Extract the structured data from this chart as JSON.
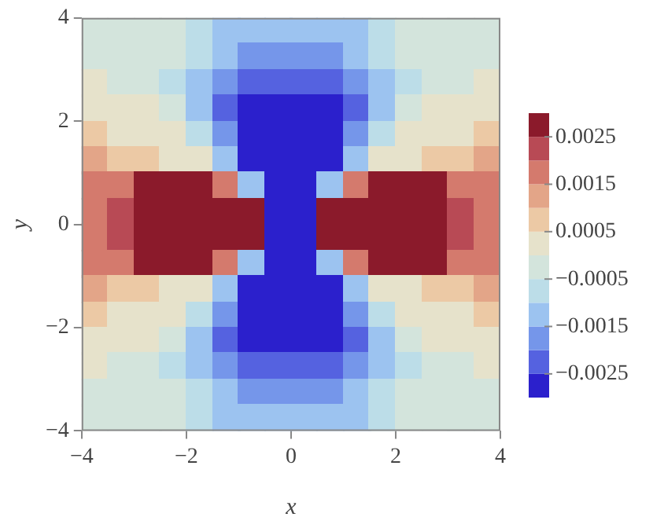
{
  "chart_data": {
    "type": "heatmap",
    "xlabel": "x",
    "ylabel": "y",
    "xlim": [
      -4,
      4
    ],
    "ylim": [
      -4,
      4
    ],
    "xticks": [
      -4,
      -2,
      0,
      2,
      4
    ],
    "yticks": [
      -4,
      -2,
      0,
      2,
      4
    ],
    "clim": [
      -0.003,
      0.003
    ],
    "cticks": [
      -0.0025,
      -0.0015,
      -0.0005,
      0.0005,
      0.0015,
      0.0025
    ],
    "colors": [
      "#2b20cc",
      "#5562e0",
      "#7596ea",
      "#9cc3f0",
      "#bcdde8",
      "#d3e4dc",
      "#e6e2cb",
      "#ecc9a5",
      "#e3a588",
      "#d47a6d",
      "#b84a55",
      "#8b1a2b"
    ],
    "cells": [
      [
        -0.00025,
        -0.00025,
        -0.00025,
        -0.00025,
        -0.00075,
        -0.00125,
        -0.00125,
        -0.00125,
        -0.00125,
        -0.00125,
        -0.00125,
        -0.00075,
        -0.00025,
        -0.00025,
        -0.00025,
        -0.00025
      ],
      [
        -0.00025,
        -0.00025,
        -0.00025,
        -0.00025,
        -0.00075,
        -0.00125,
        -0.00175,
        -0.00175,
        -0.00175,
        -0.00175,
        -0.00125,
        -0.00075,
        -0.00025,
        -0.00025,
        -0.00025,
        -0.00025
      ],
      [
        0.00025,
        -0.00025,
        -0.00025,
        -0.00075,
        -0.00125,
        -0.00175,
        -0.00225,
        -0.00225,
        -0.00225,
        -0.00225,
        -0.00175,
        -0.00125,
        -0.00075,
        -0.00025,
        -0.00025,
        0.00025
      ],
      [
        0.00025,
        0.00025,
        0.00025,
        -0.00025,
        -0.00125,
        -0.00225,
        -0.00275,
        -0.00275,
        -0.00275,
        -0.00275,
        -0.00225,
        -0.00125,
        -0.00025,
        0.00025,
        0.00025,
        0.00025
      ],
      [
        0.00075,
        0.00025,
        0.00025,
        0.00025,
        -0.00075,
        -0.00175,
        -0.00275,
        -0.00275,
        -0.00275,
        -0.00275,
        -0.00175,
        -0.00075,
        0.00025,
        0.00025,
        0.00025,
        0.00075
      ],
      [
        0.00125,
        0.00075,
        0.00075,
        0.00025,
        0.00025,
        -0.00125,
        -0.00275,
        -0.00275,
        -0.00275,
        -0.00275,
        -0.00125,
        0.00025,
        0.00025,
        0.00075,
        0.00075,
        0.00125
      ],
      [
        0.00175,
        0.00175,
        0.00275,
        0.00275,
        0.00275,
        0.00175,
        -0.00125,
        -0.00275,
        -0.00275,
        -0.00125,
        0.00175,
        0.00275,
        0.00275,
        0.00275,
        0.00175,
        0.00175
      ],
      [
        0.00175,
        0.00225,
        0.00275,
        0.00275,
        0.00275,
        0.00275,
        0.00275,
        -0.00275,
        -0.00275,
        0.00275,
        0.00275,
        0.00275,
        0.00275,
        0.00275,
        0.00225,
        0.00175
      ],
      [
        0.00175,
        0.00225,
        0.00275,
        0.00275,
        0.00275,
        0.00275,
        0.00275,
        -0.00275,
        -0.00275,
        0.00275,
        0.00275,
        0.00275,
        0.00275,
        0.00275,
        0.00225,
        0.00175
      ],
      [
        0.00175,
        0.00175,
        0.00275,
        0.00275,
        0.00275,
        0.00175,
        -0.00125,
        -0.00275,
        -0.00275,
        -0.00125,
        0.00175,
        0.00275,
        0.00275,
        0.00275,
        0.00175,
        0.00175
      ],
      [
        0.00125,
        0.00075,
        0.00075,
        0.00025,
        0.00025,
        -0.00125,
        -0.00275,
        -0.00275,
        -0.00275,
        -0.00275,
        -0.00125,
        0.00025,
        0.00025,
        0.00075,
        0.00075,
        0.00125
      ],
      [
        0.00075,
        0.00025,
        0.00025,
        0.00025,
        -0.00075,
        -0.00175,
        -0.00275,
        -0.00275,
        -0.00275,
        -0.00275,
        -0.00175,
        -0.00075,
        0.00025,
        0.00025,
        0.00025,
        0.00075
      ],
      [
        0.00025,
        0.00025,
        0.00025,
        -0.00025,
        -0.00125,
        -0.00225,
        -0.00275,
        -0.00275,
        -0.00275,
        -0.00275,
        -0.00225,
        -0.00125,
        -0.00025,
        0.00025,
        0.00025,
        0.00025
      ],
      [
        0.00025,
        -0.00025,
        -0.00025,
        -0.00075,
        -0.00125,
        -0.00175,
        -0.00225,
        -0.00225,
        -0.00225,
        -0.00225,
        -0.00175,
        -0.00125,
        -0.00075,
        -0.00025,
        -0.00025,
        0.00025
      ],
      [
        -0.00025,
        -0.00025,
        -0.00025,
        -0.00025,
        -0.00075,
        -0.00125,
        -0.00175,
        -0.00175,
        -0.00175,
        -0.00175,
        -0.00125,
        -0.00075,
        -0.00025,
        -0.00025,
        -0.00025,
        -0.00025
      ],
      [
        -0.00025,
        -0.00025,
        -0.00025,
        -0.00025,
        -0.00075,
        -0.00125,
        -0.00125,
        -0.00125,
        -0.00125,
        -0.00125,
        -0.00125,
        -0.00075,
        -0.00025,
        -0.00025,
        -0.00025,
        -0.00025
      ]
    ]
  }
}
